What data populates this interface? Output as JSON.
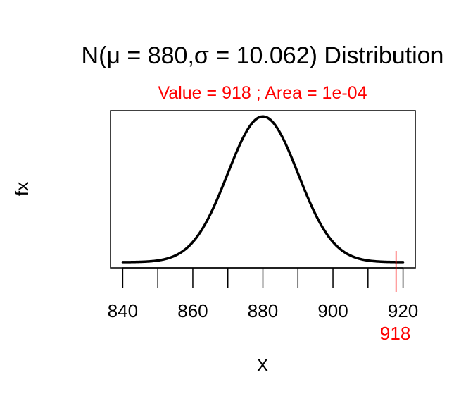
{
  "chart_data": {
    "type": "line",
    "title": "N(μ = 880,σ = 10.062) Distribution",
    "subtitle": "Value = 918 ; Area = 1e-04",
    "xlabel": "X",
    "ylabel": "fx",
    "xlim": [
      836.5,
      923.5
    ],
    "ticks": [
      "840",
      "860",
      "880",
      "900",
      "920"
    ],
    "tick_values": [
      840,
      860,
      880,
      900,
      920
    ],
    "minor_tick_values": [
      850,
      870,
      890,
      910
    ],
    "distribution": {
      "mean": 880,
      "sd": 10.062
    },
    "curve_range": [
      840,
      920
    ],
    "marker": {
      "value": 918,
      "label": "918"
    },
    "colors": {
      "curve": "#000000",
      "highlight": "#ff0000",
      "text": "#000000"
    },
    "grid": false,
    "legend": "none"
  }
}
